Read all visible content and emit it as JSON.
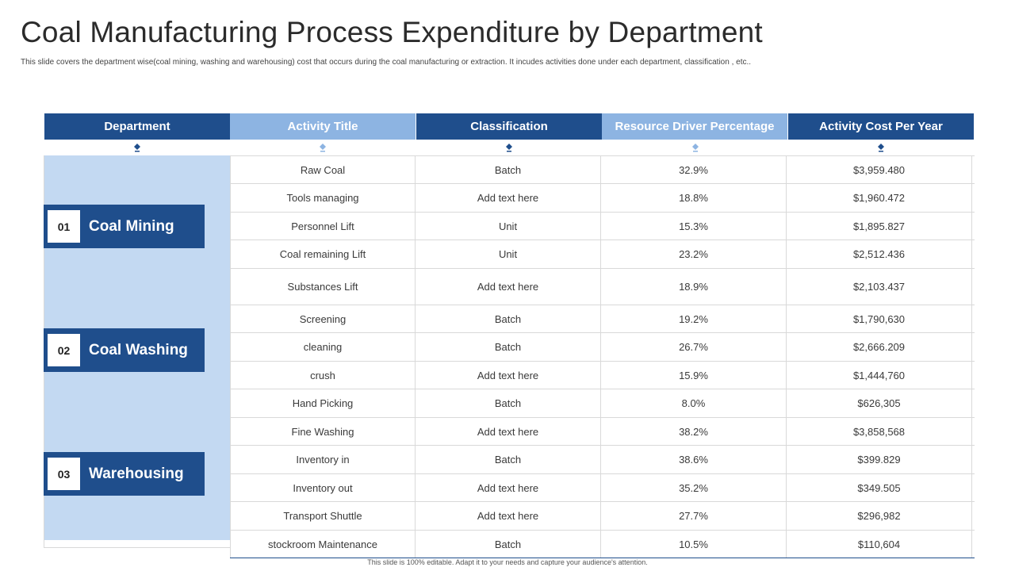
{
  "title": "Coal Manufacturing Process Expenditure by Department",
  "subtitle": "This slide covers the department wise(coal mining, washing and warehousing) cost that occurs during the coal manufacturing or extraction. It incudes activities done under each department, classification , etc..",
  "footer": "This slide is 100% editable. Adapt it to your needs and capture your audience's attention.",
  "colors": {
    "dark_blue": "#1f4e8c",
    "light_blue": "#8db4e2",
    "panel_blue": "#c3d9f2"
  },
  "headers": [
    "Department",
    "Activity Title",
    "Classification",
    "Resource Driver Percentage",
    "Activity Cost Per Year"
  ],
  "departments": [
    {
      "num": "01",
      "name": "Coal Mining"
    },
    {
      "num": "02",
      "name": "Coal Washing"
    },
    {
      "num": "03",
      "name": "Warehousing"
    }
  ],
  "rows": [
    {
      "activity": "Raw Coal",
      "classification": "Batch",
      "percentage": "32.9%",
      "cost": "$3,959.480"
    },
    {
      "activity": "Tools managing",
      "classification": "Add text here",
      "percentage": "18.8%",
      "cost": "$1,960.472"
    },
    {
      "activity": "Personnel Lift",
      "classification": "Unit",
      "percentage": "15.3%",
      "cost": "$1,895.827"
    },
    {
      "activity": "Coal remaining Lift",
      "classification": "Unit",
      "percentage": "23.2%",
      "cost": "$2,512.436"
    },
    {
      "activity": "Substances Lift",
      "classification": "Add text here",
      "percentage": "18.9%",
      "cost": "$2,103.437"
    },
    {
      "activity": "Screening",
      "classification": "Batch",
      "percentage": "19.2%",
      "cost": "$1,790,630"
    },
    {
      "activity": "cleaning",
      "classification": "Batch",
      "percentage": "26.7%",
      "cost": "$2,666.209"
    },
    {
      "activity": "crush",
      "classification": "Add text here",
      "percentage": "15.9%",
      "cost": "$1,444,760"
    },
    {
      "activity": "Hand Picking",
      "classification": "Batch",
      "percentage": "8.0%",
      "cost": "$626,305"
    },
    {
      "activity": "Fine Washing",
      "classification": "Add text here",
      "percentage": "38.2%",
      "cost": "$3,858,568"
    },
    {
      "activity": "Inventory  in",
      "classification": "Batch",
      "percentage": "38.6%",
      "cost": "$399.829"
    },
    {
      "activity": "Inventory  out",
      "classification": "Add text here",
      "percentage": "35.2%",
      "cost": "$349.505"
    },
    {
      "activity": "Transport Shuttle",
      "classification": "Add text here",
      "percentage": "27.7%",
      "cost": "$296,982"
    },
    {
      "activity": "stockroom Maintenance",
      "classification": "Batch",
      "percentage": "10.5%",
      "cost": "$110,604"
    }
  ]
}
